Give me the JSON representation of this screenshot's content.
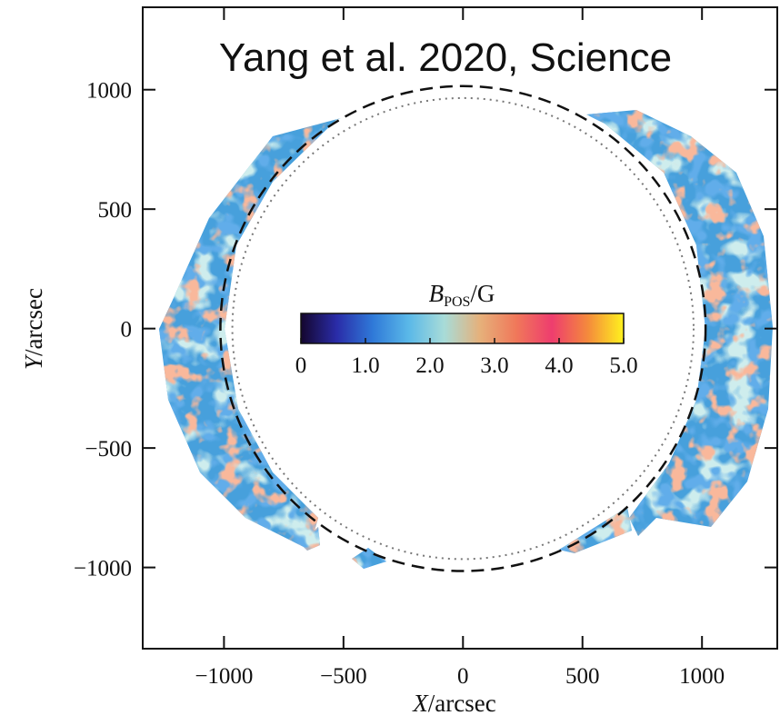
{
  "chart_data": {
    "type": "image",
    "title": "Yang et al. 2020, Science",
    "xlabel": {
      "symbol": "X",
      "unit": "/arcsec"
    },
    "ylabel": {
      "symbol": "Y",
      "unit": "/arcsec"
    },
    "xlim": [
      -1340,
      1315
    ],
    "ylim": [
      -1340,
      1345
    ],
    "xticks": [
      {
        "value": -1000,
        "label": "−1000"
      },
      {
        "value": -500,
        "label": "−500"
      },
      0,
      500,
      1000
    ],
    "yticks": [
      {
        "value": -1000,
        "label": "−1000"
      },
      {
        "value": -500,
        "label": "−500"
      },
      0,
      500,
      1000
    ],
    "circles": [
      {
        "r": 1015,
        "style": "dashed",
        "color": "#111111"
      },
      {
        "r": 965,
        "style": "dotted",
        "color": "#777777"
      }
    ],
    "colorbar": {
      "symbol": "B",
      "subscript": "POS",
      "unit": "/G",
      "range": [
        0,
        5
      ],
      "ticks": [
        0,
        {
          "value": 1,
          "label": "1.0"
        },
        {
          "value": 2,
          "label": "2.0"
        },
        {
          "value": 3,
          "label": "3.0"
        },
        {
          "value": 4,
          "label": "4.0"
        },
        {
          "value": 5,
          "label": "5.0"
        }
      ],
      "colormap": [
        "#14062e",
        "#2a2ca8",
        "#2f79d8",
        "#5ab8e8",
        "#a8dcd8",
        "#e6b07a",
        "#f0785a",
        "#ee3d6e",
        "#f48a3c",
        "#fff21e"
      ]
    }
  }
}
